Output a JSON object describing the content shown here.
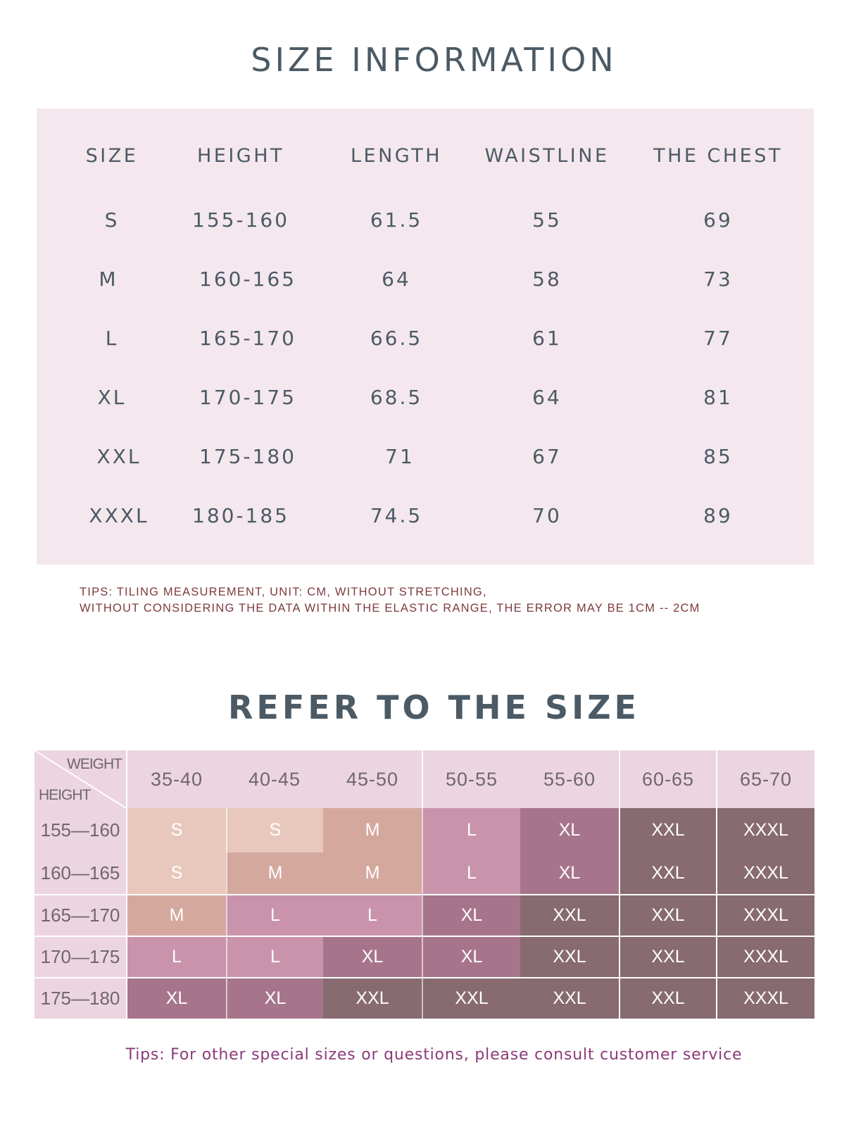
{
  "size_information": {
    "title": "SIZE INFORMATION",
    "headers": [
      "SIZE",
      "HEIGHT",
      "LENGTH",
      "WAISTLINE",
      "THE CHEST"
    ],
    "rows": [
      [
        "S",
        "155-160",
        "61.5",
        "55",
        "69"
      ],
      [
        "M",
        "160-165",
        "64",
        "58",
        "73"
      ],
      [
        "L",
        "165-170",
        "66.5",
        "61",
        "77"
      ],
      [
        "XL",
        "170-175",
        "68.5",
        "64",
        "81"
      ],
      [
        "XXL",
        "175-180",
        "71",
        "67",
        "85"
      ],
      [
        "XXXL",
        "180-185",
        "74.5",
        "70",
        "89"
      ]
    ],
    "tips": "TIPS: TILING MEASUREMENT, UNIT: CM, WITHOUT STRETCHING,\nWITHOUT CONSIDERING THE DATA WITHIN THE ELASTIC RANGE, THE ERROR MAY BE 1CM -- 2CM"
  },
  "refer_to_size": {
    "title": "REFER TO THE SIZE",
    "corner_top": "WEIGHT",
    "corner_bottom": "HEIGHT",
    "weight_columns": [
      "35-40",
      "40-45",
      "45-50",
      "50-55",
      "55-60",
      "60-65",
      "65-70"
    ],
    "height_rows": [
      "155—160",
      "160—165",
      "165—170",
      "170—175",
      "175—180"
    ],
    "cells": [
      [
        "S",
        "S",
        "M",
        "L",
        "XL",
        "XXL",
        "XXXL"
      ],
      [
        "S",
        "M",
        "M",
        "L",
        "XL",
        "XXL",
        "XXXL"
      ],
      [
        "M",
        "L",
        "L",
        "XL",
        "XXL",
        "XXL",
        "XXXL"
      ],
      [
        "L",
        "L",
        "XL",
        "XL",
        "XXL",
        "XXL",
        "XXXL"
      ],
      [
        "XL",
        "XL",
        "XXL",
        "XXL",
        "XXL",
        "XXL",
        "XXXL"
      ]
    ],
    "size_colors": {
      "S": "#e8c8bc",
      "M": "#d5a89e",
      "L": "#c994ab",
      "XL": "#a7758b",
      "XXL": "#876b70",
      "XXXL": "#876b70"
    },
    "tips": "Tips: For other special sizes or questions, please consult customer service"
  }
}
